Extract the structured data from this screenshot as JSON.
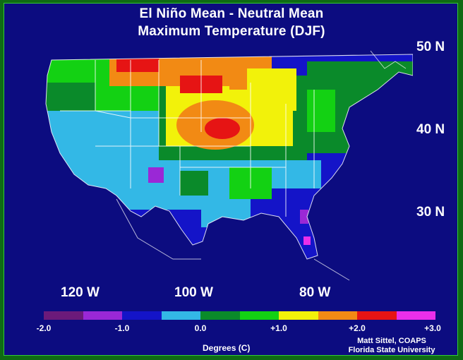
{
  "title_line1": "El Niño Mean - Neutral Mean",
  "title_line2": "Maximum Temperature (DJF)",
  "lat_labels": [
    "50 N",
    "40 N",
    "30 N"
  ],
  "lon_labels": [
    "120 W",
    "100 W",
    "80 W"
  ],
  "colorbar": {
    "colors": [
      "#6b1a7a",
      "#9a28d6",
      "#1414c8",
      "#33b8e6",
      "#0a8a2a",
      "#13d113",
      "#f2f20a",
      "#f28a14",
      "#e61414",
      "#ea2fea"
    ],
    "ticks": [
      "-2.0",
      "-1.0",
      "0.0",
      "+1.0",
      "+2.0",
      "+3.0"
    ],
    "label": "Degrees (C)"
  },
  "credit_line1": "Matt Sittel, COAPS",
  "credit_line2": "Florida State University",
  "background_color": "#0c0c80",
  "border_color": "#0f6b14",
  "map_regions": {
    "northern_plains": "red",
    "central_plains": "orange",
    "great_lakes": "yellow",
    "northwest": "green",
    "southwest": "light-blue",
    "gulf_coast": "blue",
    "florida": "purple",
    "northeast": "dark-green"
  }
}
